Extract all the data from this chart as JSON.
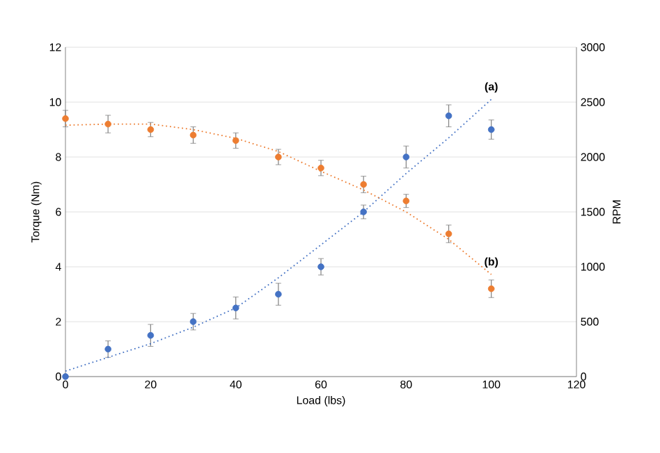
{
  "chart_data": {
    "type": "scatter",
    "xlabel": "Load (lbs)",
    "ylabel": "Torque  (Nm)",
    "y2label": "RPM",
    "xlim": [
      0,
      120
    ],
    "xticks": [
      0,
      20,
      40,
      60,
      80,
      100,
      120
    ],
    "ylim": [
      0,
      12
    ],
    "yticks": [
      0,
      2,
      4,
      6,
      8,
      10,
      12
    ],
    "y2lim": [
      0,
      3000
    ],
    "y2ticks": [
      0,
      500,
      1000,
      1500,
      2000,
      2500,
      3000
    ],
    "grid": "y",
    "series": [
      {
        "color": "#4472c4",
        "marker": "circle",
        "x": [
          0,
          10,
          20,
          30,
          40,
          50,
          60,
          70,
          80,
          90,
          100
        ],
        "values": [
          0,
          1.0,
          1.5,
          2.0,
          2.5,
          3.0,
          4.0,
          6.0,
          8.0,
          9.5,
          9.0
        ],
        "errors": [
          null,
          0.3,
          0.4,
          0.3,
          0.4,
          0.4,
          0.3,
          0.25,
          0.4,
          0.4,
          0.35
        ]
      },
      {
        "type": "scatter",
        "axis": "y2",
        "color": "#ed7d31",
        "marker": "circle",
        "x": [
          0,
          10,
          20,
          30,
          40,
          50,
          60,
          70,
          80,
          90,
          100
        ],
        "values": [
          2350,
          2300,
          2250,
          2200,
          2150,
          2000,
          1900,
          1750,
          1600,
          1300,
          800
        ],
        "errors": [
          75,
          80,
          65,
          75,
          70,
          70,
          70,
          75,
          60,
          80,
          80
        ]
      },
      {
        "type": "line",
        "color": "#4472c4",
        "line_style": "dotted",
        "marker": "none",
        "x": [
          0,
          10,
          20,
          30,
          40,
          50,
          60,
          70,
          80,
          90,
          100
        ],
        "values": [
          0.2,
          0.7,
          1.2,
          1.8,
          2.5,
          3.6,
          4.8,
          6.0,
          7.4,
          8.7,
          10.1
        ]
      },
      {
        "type": "line",
        "axis": "y2",
        "color": "#ed7d31",
        "line_style": "dotted",
        "marker": "none",
        "x": [
          0,
          10,
          20,
          30,
          40,
          50,
          60,
          70,
          80,
          90,
          100
        ],
        "values": [
          2290,
          2300,
          2300,
          2250,
          2170,
          2050,
          1870,
          1700,
          1500,
          1250,
          930
        ]
      }
    ],
    "annotations": [
      "(a)",
      "(b)"
    ]
  }
}
